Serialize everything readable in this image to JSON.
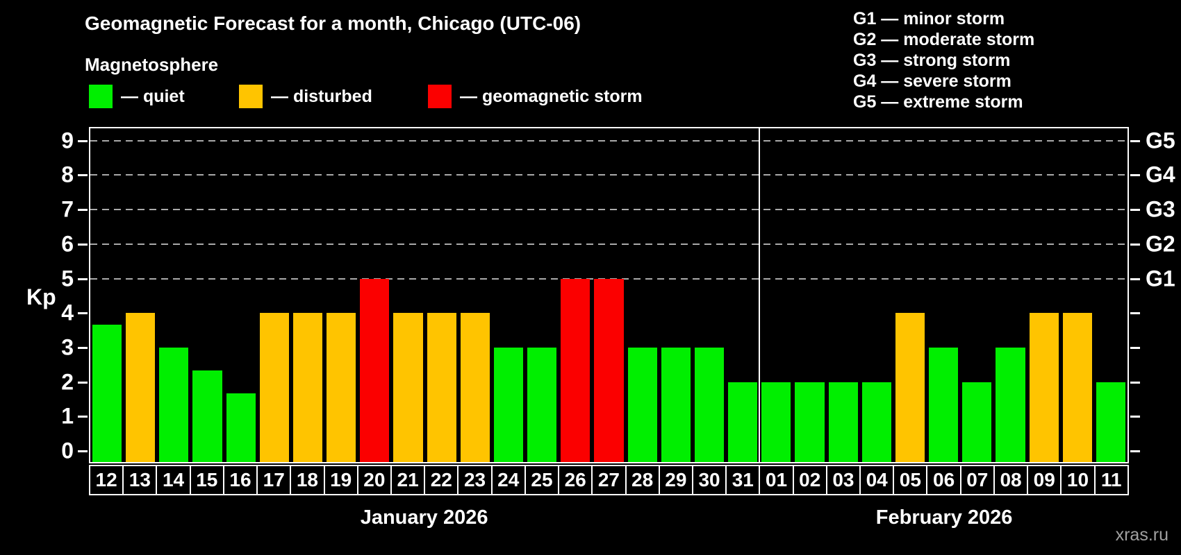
{
  "title": "Geomagnetic Forecast for a month, Chicago (UTC-06)",
  "legend": {
    "heading": "Magnetosphere",
    "items": [
      {
        "name": "quiet",
        "label": "— quiet",
        "color": "#00ef00"
      },
      {
        "name": "disturbed",
        "label": "— disturbed",
        "color": "#ffc400"
      },
      {
        "name": "storm",
        "label": "— geomagnetic storm",
        "color": "#fb0000"
      }
    ]
  },
  "storm_scale_legend": [
    "G1 — minor storm",
    "G2 — moderate storm",
    "G3 — strong storm",
    "G4 — severe storm",
    "G5 — extreme storm"
  ],
  "watermark": "xras.ru",
  "chart_data": {
    "type": "bar",
    "title": "Geomagnetic Forecast for a month, Chicago (UTC-06)",
    "xlabel": "",
    "ylabel": "Kp",
    "ylim": [
      0,
      9
    ],
    "yticks": [
      0,
      1,
      2,
      3,
      4,
      5,
      6,
      7,
      8,
      9
    ],
    "grid": "dashed horizontal lines at Kp 5 to 9 only",
    "legend_position": "top-left",
    "right_axis": [
      {
        "label": "G1",
        "kp": 5
      },
      {
        "label": "G2",
        "kp": 6
      },
      {
        "label": "G3",
        "kp": 7
      },
      {
        "label": "G4",
        "kp": 8
      },
      {
        "label": "G5",
        "kp": 9
      }
    ],
    "months": [
      {
        "label": "January 2026",
        "days": 20
      },
      {
        "label": "February 2026",
        "days": 11
      }
    ],
    "categories": [
      "12",
      "13",
      "14",
      "15",
      "16",
      "17",
      "18",
      "19",
      "20",
      "21",
      "22",
      "23",
      "24",
      "25",
      "26",
      "27",
      "28",
      "29",
      "30",
      "31",
      "01",
      "02",
      "03",
      "04",
      "05",
      "06",
      "07",
      "08",
      "09",
      "10",
      "11"
    ],
    "values": [
      3.67,
      4,
      3,
      2.33,
      1.67,
      4,
      4,
      4,
      5,
      4,
      4,
      4,
      3,
      3,
      5,
      5,
      3,
      3,
      3,
      2,
      2,
      2,
      2,
      2,
      4,
      3,
      2,
      3,
      4,
      4,
      2
    ],
    "statuses": [
      "quiet",
      "disturbed",
      "quiet",
      "quiet",
      "quiet",
      "disturbed",
      "disturbed",
      "disturbed",
      "storm",
      "disturbed",
      "disturbed",
      "disturbed",
      "quiet",
      "quiet",
      "storm",
      "storm",
      "quiet",
      "quiet",
      "quiet",
      "quiet",
      "quiet",
      "quiet",
      "quiet",
      "quiet",
      "disturbed",
      "quiet",
      "quiet",
      "quiet",
      "disturbed",
      "disturbed",
      "quiet"
    ],
    "status_colors": {
      "quiet": "#00ef00",
      "disturbed": "#ffc400",
      "storm": "#fb0000"
    }
  }
}
